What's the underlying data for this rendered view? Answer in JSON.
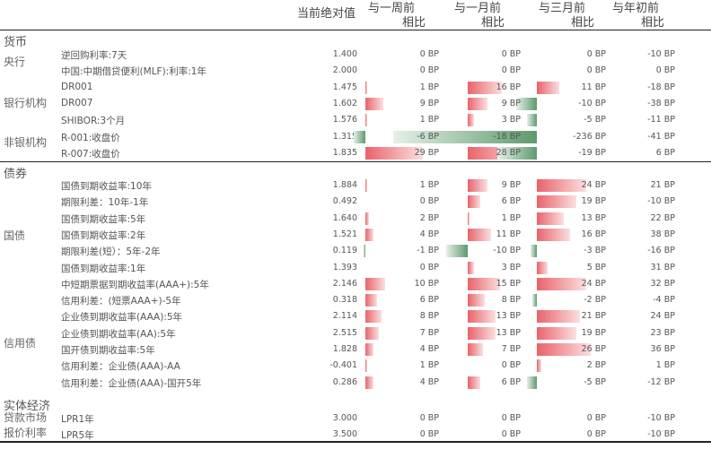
{
  "header": {
    "col_current": "当前绝对值",
    "col_week": [
      "与一周前",
      "相比"
    ],
    "col_month": [
      "与一月前",
      "相比"
    ],
    "col_quarter": [
      "与三月前",
      "相比"
    ],
    "col_ytd": [
      "与年初前",
      "相比"
    ]
  },
  "colors": {
    "positive_bar": "#e9636a",
    "negative_bar": "#5e9a6e"
  },
  "sections": [
    {
      "title": "货币",
      "groups": [
        {
          "name": "央行",
          "rows": [
            {
              "label": "逆回购利率:7天",
              "value": "1.400",
              "week": 0,
              "month": 0,
              "quarter": 0,
              "ytd": -10
            },
            {
              "label": "中国:中期借贷便利(MLF):利率:1年",
              "value": "2.000",
              "week": 0,
              "month": 0,
              "quarter": 0,
              "ytd": 0
            }
          ]
        },
        {
          "name": "银行机构",
          "rows": [
            {
              "label": "DR001",
              "value": "1.475",
              "week": 1,
              "month": 16,
              "quarter": 11,
              "ytd": -18
            },
            {
              "label": "DR007",
              "value": "1.602",
              "week": 9,
              "month": 9,
              "quarter": -10,
              "ytd": -38
            },
            {
              "label": "SHIBOR:3个月",
              "value": "1.576",
              "week": 1,
              "month": 3,
              "quarter": -5,
              "ytd": -11
            }
          ]
        },
        {
          "name": "非银机构",
          "rows": [
            {
              "label": "R-001:收盘价",
              "value": "1.315",
              "week": -6,
              "month": -18,
              "quarter": -236,
              "ytd": -41
            },
            {
              "label": "R-007:收盘价",
              "value": "1.835",
              "week": 29,
              "month": 28,
              "quarter": -19,
              "ytd": 6
            }
          ]
        }
      ]
    },
    {
      "title": "债券",
      "groups": [
        {
          "name": "国债",
          "rows": [
            {
              "label": "国债到期收益率:10年",
              "value": "1.884",
              "week": 1,
              "month": 9,
              "quarter": 24,
              "ytd": 21
            },
            {
              "label": "期限利差：10年-1年",
              "value": "0.492",
              "week": 0,
              "month": 6,
              "quarter": 19,
              "ytd": -10
            },
            {
              "label": "国债到期收益率:5年",
              "value": "1.640",
              "week": 2,
              "month": 1,
              "quarter": 13,
              "ytd": 22
            },
            {
              "label": "国债到期收益率:2年",
              "value": "1.521",
              "week": 4,
              "month": 11,
              "quarter": 16,
              "ytd": 38
            },
            {
              "label": "期限利差(短）：5年-2年",
              "value": "0.119",
              "week": -1,
              "month": -10,
              "quarter": -3,
              "ytd": -16
            },
            {
              "label": "国债到期收益率:1年",
              "value": "1.393",
              "week": 0,
              "month": 3,
              "quarter": 5,
              "ytd": 31
            }
          ]
        },
        {
          "name": "信用债",
          "rows": [
            {
              "label": "中短期票据到期收益率(AAA+):5年",
              "value": "2.146",
              "week": 10,
              "month": 15,
              "quarter": 24,
              "ytd": 32
            },
            {
              "label": "信用利差：(短票AAA+)-5年",
              "value": "0.318",
              "week": 6,
              "month": 8,
              "quarter": -2,
              "ytd": -4
            },
            {
              "label": "企业债到期收益率(AAA):5年",
              "value": "2.114",
              "week": 8,
              "month": 13,
              "quarter": 21,
              "ytd": 24
            },
            {
              "label": "企业债到期收益率(AA):5年",
              "value": "2.515",
              "week": 7,
              "month": 13,
              "quarter": 19,
              "ytd": 23
            },
            {
              "label": "国开债到期收益率:5年",
              "value": "1.828",
              "week": 4,
              "month": 7,
              "quarter": 26,
              "ytd": 36
            },
            {
              "label": "信用利差：企业债(AAA)-AA",
              "value": "-0.401",
              "week": 1,
              "month": 0,
              "quarter": 2,
              "ytd": 1
            },
            {
              "label": "信用利差：企业债(AAA)-国开5年",
              "value": "0.286",
              "week": 4,
              "month": 6,
              "quarter": -5,
              "ytd": -12
            }
          ]
        }
      ]
    },
    {
      "title": "实体经济",
      "groups": [
        {
          "name": "贷款市场报价利率",
          "name_lines": [
            "贷款市场",
            "报价利率"
          ],
          "rows": [
            {
              "label": "LPR1年",
              "value": "3.000",
              "week": 0,
              "month": 0,
              "quarter": 0,
              "ytd": -10
            },
            {
              "label": "LPR5年",
              "value": "3.500",
              "week": 0,
              "month": 0,
              "quarter": 0,
              "ytd": -10
            }
          ]
        }
      ]
    }
  ],
  "unit": "BP"
}
